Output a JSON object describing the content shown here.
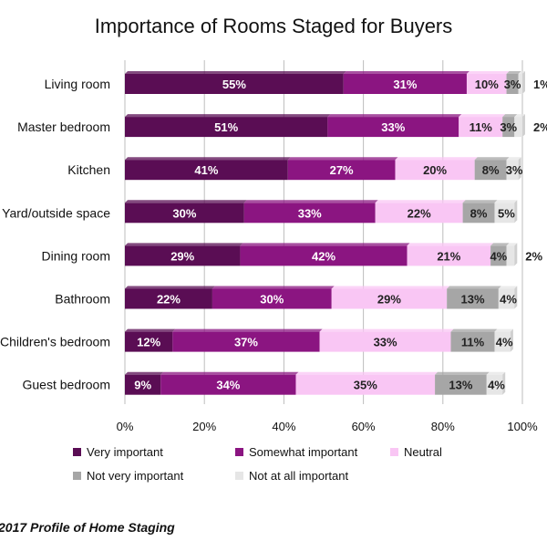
{
  "chart_data": {
    "type": "bar",
    "orientation": "horizontal",
    "stacked": true,
    "title": "Importance of Rooms Staged for Buyers",
    "xlabel": "",
    "ylabel": "",
    "xlim": [
      0,
      100
    ],
    "grid": true,
    "legend_position": "bottom",
    "categories": [
      "Living room",
      "Master bedroom",
      "Kitchen",
      "Yard/outside space",
      "Dining room",
      "Bathroom",
      "Children's bedroom",
      "Guest bedroom"
    ],
    "x_ticks": [
      "0%",
      "20%",
      "40%",
      "60%",
      "80%",
      "100%"
    ],
    "x_tick_values": [
      0,
      20,
      40,
      60,
      80,
      100
    ],
    "series": [
      {
        "name": "Very important",
        "color": "#5a0d54",
        "label_color": "#ffffff",
        "values": [
          55,
          51,
          41,
          30,
          29,
          22,
          12,
          9
        ],
        "labels": [
          "55%",
          "51%",
          "41%",
          "30%",
          "29%",
          "22%",
          "12%",
          "9%"
        ]
      },
      {
        "name": "Somewhat important",
        "color": "#8b1581",
        "label_color": "#ffffff",
        "values": [
          31,
          33,
          27,
          33,
          42,
          30,
          37,
          34
        ],
        "labels": [
          "31%",
          "33%",
          "27%",
          "33%",
          "42%",
          "30%",
          "37%",
          "34%"
        ]
      },
      {
        "name": "Neutral",
        "color": "#f9c6f4",
        "label_color": "#222222",
        "values": [
          10,
          11,
          20,
          22,
          21,
          29,
          33,
          35
        ],
        "labels": [
          "10%",
          "11%",
          "20%",
          "22%",
          "21%",
          "29%",
          "33%",
          "35%"
        ]
      },
      {
        "name": "Not very important",
        "color": "#a6a6a6",
        "label_color": "#222222",
        "values": [
          3,
          3,
          8,
          8,
          4,
          13,
          11,
          13
        ],
        "labels": [
          "3%",
          "3%",
          "8%",
          "8%",
          "4%",
          "13%",
          "11%",
          "13%"
        ]
      },
      {
        "name": "Not at all important",
        "color": "#e6e6e6",
        "label_color": "#222222",
        "values": [
          1,
          2,
          3,
          5,
          2,
          4,
          4,
          4
        ],
        "labels": [
          "1%",
          "2%",
          "3%",
          "5%",
          "2%",
          "4%",
          "4%",
          "4%"
        ]
      }
    ]
  },
  "source": "2017 Profile of Home Staging"
}
